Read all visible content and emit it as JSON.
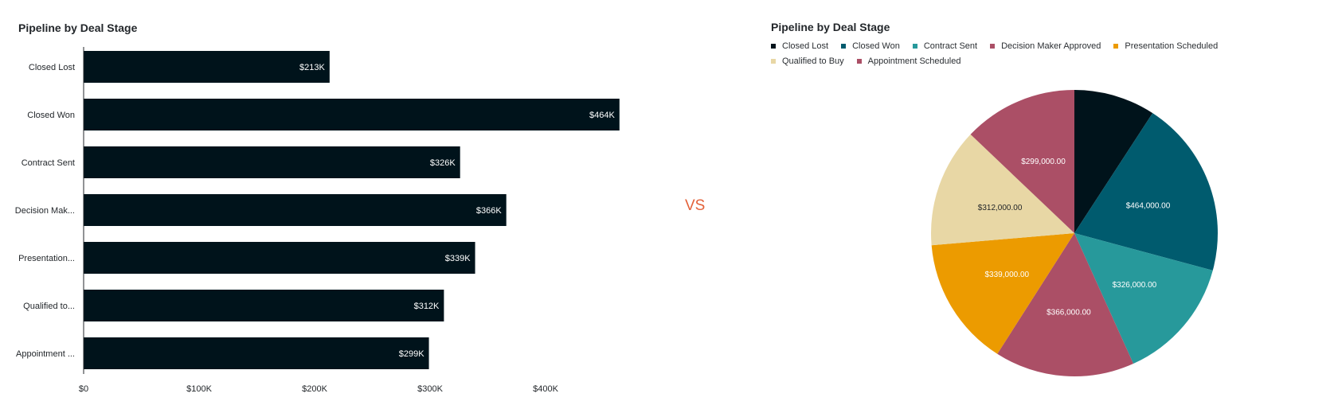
{
  "comparison_label": "VS",
  "colors": {
    "bar": "#00131b",
    "closed_lost": "#00131b",
    "closed_won": "#005b6e",
    "contract_sent": "#27999b",
    "decision_maker_approved": "#ab4f66",
    "presentation_scheduled": "#ec9b00",
    "qualified_to_buy": "#e8d7a5",
    "appointment_scheduled": "#ab4f66"
  },
  "chart_data": [
    {
      "type": "bar",
      "orientation": "horizontal",
      "title": "Pipeline by Deal Stage",
      "categories": [
        "Closed Lost",
        "Closed Won",
        "Contract Sent",
        "Decision Mak...",
        "Presentation...",
        "Qualified to...",
        "Appointment ..."
      ],
      "values": [
        213000,
        464000,
        326000,
        366000,
        339000,
        312000,
        299000
      ],
      "data_labels": [
        "$213K",
        "$464K",
        "$326K",
        "$366K",
        "$339K",
        "$312K",
        "$299K"
      ],
      "xlim": [
        0,
        500000
      ],
      "x_ticks": [
        0,
        100000,
        200000,
        300000,
        400000
      ],
      "x_tick_labels": [
        "$0",
        "$100K",
        "$200K",
        "$300K",
        "$400K"
      ],
      "grid": false
    },
    {
      "type": "pie",
      "title": "Pipeline by Deal Stage",
      "legend_position": "top",
      "labels": [
        "Closed Lost",
        "Closed Won",
        "Contract Sent",
        "Decision Maker Approved",
        "Presentation Scheduled",
        "Qualified to Buy",
        "Appointment Scheduled"
      ],
      "values": [
        213000,
        464000,
        326000,
        366000,
        339000,
        312000,
        299000
      ],
      "data_labels": [
        "",
        "$464,000.00",
        "$326,000.00",
        "$366,000.00",
        "$339,000.00",
        "$312,000.00",
        "$299,000.00"
      ],
      "colors": [
        "#00131b",
        "#005b6e",
        "#27999b",
        "#ab4f66",
        "#ec9b00",
        "#e8d7a5",
        "#ab4f66"
      ]
    }
  ]
}
